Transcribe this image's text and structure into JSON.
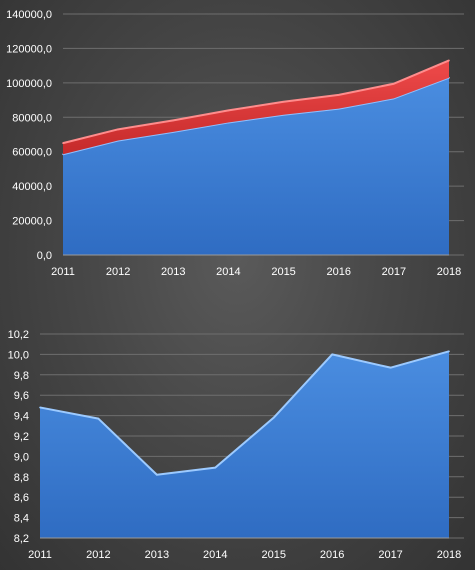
{
  "chart_data": [
    {
      "type": "area",
      "stacked": true,
      "title": "",
      "xlabel": "",
      "ylabel": "",
      "categories": [
        "2011",
        "2012",
        "2013",
        "2014",
        "2015",
        "2016",
        "2017",
        "2018"
      ],
      "series": [
        {
          "values": [
            58500,
            66500,
            71500,
            77000,
            81500,
            85000,
            91000,
            103000
          ],
          "color": "#3f80d3"
        },
        {
          "values": [
            6500,
            6500,
            6700,
            7000,
            7500,
            8000,
            8500,
            10000
          ],
          "color": "#e03a3a"
        }
      ],
      "ylim": [
        0,
        140000
      ],
      "yticks": [
        "0,0",
        "20000,0",
        "40000,0",
        "60000,0",
        "80000,0",
        "100000,0",
        "120000,0",
        "140000,0"
      ],
      "grid": true,
      "legend": "none"
    },
    {
      "type": "area",
      "title": "",
      "xlabel": "",
      "ylabel": "",
      "categories": [
        "2011",
        "2012",
        "2013",
        "2014",
        "2015",
        "2016",
        "2017",
        "2018"
      ],
      "series": [
        {
          "values": [
            9.48,
            9.37,
            8.82,
            8.89,
            9.38,
            10.0,
            9.87,
            10.03
          ],
          "color": "#3f80d3"
        }
      ],
      "ylim": [
        8.2,
        10.2
      ],
      "yticks": [
        "8,2",
        "8,4",
        "8,6",
        "8,8",
        "9,0",
        "9,2",
        "9,4",
        "9,6",
        "9,8",
        "10,0",
        "10,2"
      ],
      "grid": true,
      "legend": "none"
    }
  ]
}
